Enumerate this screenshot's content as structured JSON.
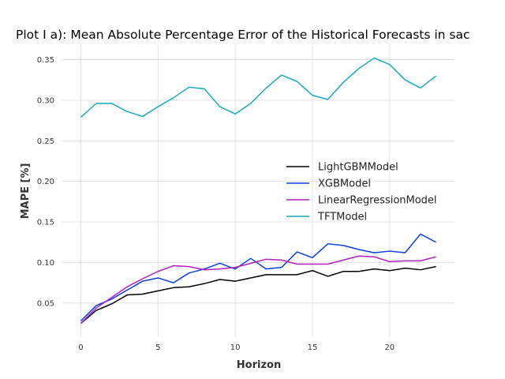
{
  "chart_data": {
    "type": "line",
    "title": "Plot I a): Mean Absolute Percentage Error of the Historical Forecasts in sac",
    "xlabel": "Horizon",
    "ylabel": "MAPE [%]",
    "xlim": [
      -1.2,
      24.2
    ],
    "ylim": [
      0.008,
      0.368
    ],
    "xticks": [
      0,
      5,
      10,
      15,
      20
    ],
    "yticks": [
      0.05,
      0.1,
      0.15,
      0.2,
      0.25,
      0.3,
      0.35
    ],
    "xtick_labels": [
      "0",
      "5",
      "10",
      "15",
      "20"
    ],
    "ytick_labels": [
      "0.05",
      "0.10",
      "0.15",
      "0.20",
      "0.25",
      "0.30",
      "0.35"
    ],
    "grid": true,
    "legend_position": "center-right",
    "x": [
      0,
      1,
      2,
      3,
      4,
      5,
      6,
      7,
      8,
      9,
      10,
      11,
      12,
      13,
      14,
      15,
      16,
      17,
      18,
      19,
      20,
      21,
      22,
      23
    ],
    "series": [
      {
        "name": "LightGBMModel",
        "color": "#000000",
        "values": [
          0.025,
          0.041,
          0.049,
          0.06,
          0.061,
          0.065,
          0.069,
          0.07,
          0.074,
          0.079,
          0.077,
          0.081,
          0.085,
          0.085,
          0.085,
          0.09,
          0.083,
          0.089,
          0.089,
          0.092,
          0.09,
          0.093,
          0.091,
          0.095
        ]
      },
      {
        "name": "XGBModel",
        "color": "#0b3fe0",
        "values": [
          0.028,
          0.047,
          0.055,
          0.066,
          0.077,
          0.081,
          0.075,
          0.087,
          0.092,
          0.099,
          0.092,
          0.105,
          0.092,
          0.094,
          0.113,
          0.106,
          0.123,
          0.121,
          0.116,
          0.112,
          0.114,
          0.112,
          0.135,
          0.125
        ]
      },
      {
        "name": "LinearRegressionModel",
        "color": "#b11fbf",
        "values": [
          0.025,
          0.044,
          0.057,
          0.07,
          0.08,
          0.089,
          0.096,
          0.095,
          0.091,
          0.092,
          0.094,
          0.099,
          0.104,
          0.103,
          0.098,
          0.098,
          0.098,
          0.103,
          0.108,
          0.107,
          0.101,
          0.102,
          0.102,
          0.107
        ]
      },
      {
        "name": "TFTModel",
        "color": "#17a9bf",
        "values": [
          0.279,
          0.296,
          0.296,
          0.286,
          0.28,
          0.292,
          0.303,
          0.316,
          0.314,
          0.292,
          0.283,
          0.296,
          0.315,
          0.331,
          0.323,
          0.306,
          0.301,
          0.322,
          0.339,
          0.352,
          0.344,
          0.325,
          0.315,
          0.33
        ]
      }
    ]
  }
}
